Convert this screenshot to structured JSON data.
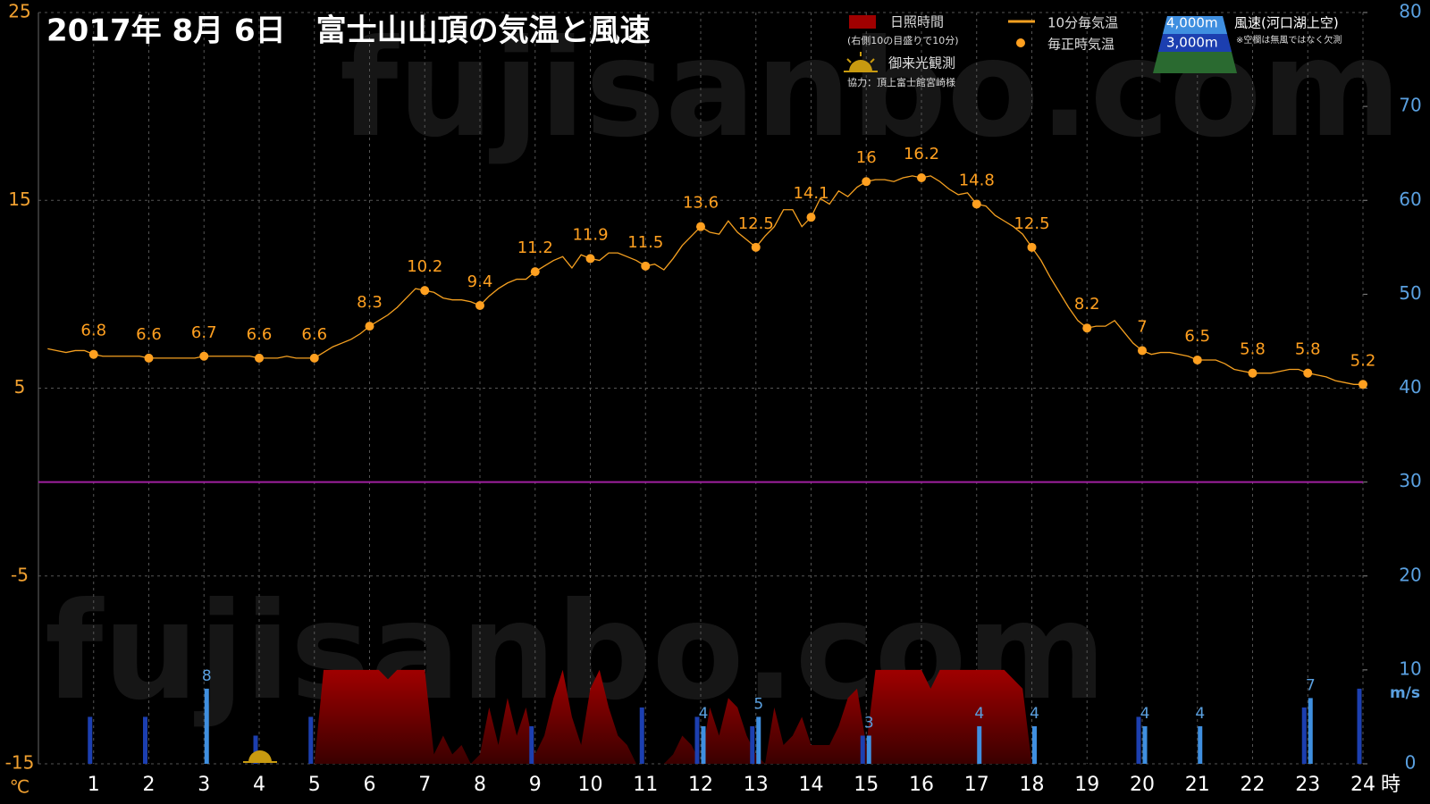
{
  "chart_data": {
    "type": "weather",
    "title": "2017年 8月 6日　富士山山頂の気温と風速",
    "watermark": "fujisanbo.com",
    "y_unit": "℃",
    "y2_unit": "m/s",
    "x_unit": "時",
    "xlim": [
      0,
      1440
    ],
    "xticks": [
      {
        "value": 60,
        "label": "1"
      },
      {
        "value": 120,
        "label": "2"
      },
      {
        "value": 180,
        "label": "3"
      },
      {
        "value": 240,
        "label": "4"
      },
      {
        "value": 300,
        "label": "5"
      },
      {
        "value": 360,
        "label": "6"
      },
      {
        "value": 420,
        "label": "7"
      },
      {
        "value": 480,
        "label": "8"
      },
      {
        "value": 540,
        "label": "9"
      },
      {
        "value": 600,
        "label": "10"
      },
      {
        "value": 660,
        "label": "11"
      },
      {
        "value": 720,
        "label": "12"
      },
      {
        "value": 780,
        "label": "13"
      },
      {
        "value": 840,
        "label": "14"
      },
      {
        "value": 900,
        "label": "15"
      },
      {
        "value": 960,
        "label": "16"
      },
      {
        "value": 1020,
        "label": "17"
      },
      {
        "value": 1080,
        "label": "18"
      },
      {
        "value": 1140,
        "label": "19"
      },
      {
        "value": 1200,
        "label": "20"
      },
      {
        "value": 1260,
        "label": "21"
      },
      {
        "value": 1320,
        "label": "22"
      },
      {
        "value": 1380,
        "label": "23"
      },
      {
        "value": 1440,
        "label": "24"
      }
    ],
    "ylim": [
      -15,
      25
    ],
    "yticks": [
      -15,
      -5,
      5,
      15,
      25
    ],
    "y2lim": [
      0,
      80
    ],
    "y2ticks": [
      0,
      10,
      20,
      30,
      40,
      50,
      60,
      70,
      80
    ],
    "grid": true,
    "reference_line": {
      "value": 0,
      "color": "#a020a0"
    },
    "x": [
      10,
      20,
      30,
      40,
      50,
      60,
      70,
      80,
      90,
      100,
      110,
      120,
      130,
      140,
      150,
      160,
      170,
      180,
      190,
      200,
      210,
      220,
      230,
      240,
      250,
      260,
      270,
      280,
      290,
      300,
      310,
      320,
      330,
      340,
      350,
      360,
      370,
      380,
      390,
      400,
      410,
      420,
      430,
      440,
      450,
      460,
      470,
      480,
      490,
      500,
      510,
      520,
      530,
      540,
      550,
      560,
      570,
      580,
      590,
      600,
      610,
      620,
      630,
      640,
      650,
      660,
      670,
      680,
      690,
      700,
      710,
      720,
      730,
      740,
      750,
      760,
      770,
      780,
      790,
      800,
      810,
      820,
      830,
      840,
      850,
      860,
      870,
      880,
      890,
      900,
      910,
      920,
      930,
      940,
      950,
      960,
      970,
      980,
      990,
      1000,
      1010,
      1020,
      1030,
      1040,
      1050,
      1060,
      1070,
      1080,
      1090,
      1100,
      1110,
      1120,
      1130,
      1140,
      1150,
      1160,
      1170,
      1180,
      1190,
      1200,
      1210,
      1220,
      1230,
      1240,
      1250,
      1260,
      1270,
      1280,
      1290,
      1300,
      1310,
      1320,
      1330,
      1340,
      1350,
      1360,
      1370,
      1380,
      1390,
      1400,
      1410,
      1420,
      1430,
      1440
    ],
    "hour_x": [
      60,
      120,
      180,
      240,
      300,
      360,
      420,
      480,
      540,
      600,
      660,
      720,
      780,
      840,
      900,
      960,
      1020,
      1080,
      1140,
      1200,
      1260,
      1320,
      1380,
      1440
    ],
    "sunshine": {
      "name": "日照時間",
      "note": "(右側10の目盛りで10分)",
      "color": "#a00000",
      "axis": "y2",
      "values": [
        0,
        0,
        0,
        0,
        0,
        0,
        0,
        0,
        0,
        0,
        0,
        0,
        0,
        0,
        0,
        0,
        0,
        0,
        0,
        0,
        0,
        0,
        0,
        0,
        0,
        0,
        0,
        0,
        0,
        0,
        10,
        10,
        10,
        10,
        10,
        10,
        10,
        9,
        10,
        10,
        10,
        10,
        1,
        3,
        1,
        2,
        0,
        1,
        6,
        2,
        7,
        3,
        6,
        1,
        3,
        7,
        10,
        5,
        2,
        8,
        10,
        6,
        3,
        2,
        0,
        0,
        0,
        0,
        1,
        3,
        2,
        0,
        6,
        3,
        7,
        6,
        3,
        1,
        0,
        6,
        2,
        3,
        5,
        2,
        2,
        2,
        4,
        7,
        8,
        2,
        10,
        10,
        10,
        10,
        10,
        10,
        8,
        10,
        10,
        10,
        10,
        10,
        10,
        10,
        10,
        9,
        8,
        0,
        0,
        0,
        0,
        0,
        0,
        0,
        0,
        0,
        0,
        0,
        0,
        0,
        0,
        0,
        0,
        0,
        0,
        0,
        0,
        0,
        0,
        0,
        0,
        0,
        0,
        0,
        0,
        0,
        0,
        0,
        0,
        0,
        0,
        0,
        0,
        0
      ]
    },
    "temp_10min": {
      "name": "10分毎気温",
      "color": "#f5a020",
      "values": [
        7.1,
        7.0,
        6.9,
        7.0,
        7.0,
        6.8,
        6.7,
        6.7,
        6.7,
        6.7,
        6.7,
        6.6,
        6.6,
        6.6,
        6.6,
        6.6,
        6.6,
        6.7,
        6.7,
        6.7,
        6.7,
        6.7,
        6.7,
        6.6,
        6.6,
        6.6,
        6.7,
        6.6,
        6.6,
        6.6,
        6.9,
        7.2,
        7.4,
        7.6,
        7.9,
        8.3,
        8.6,
        8.9,
        9.3,
        9.8,
        10.3,
        10.2,
        10.1,
        9.8,
        9.7,
        9.7,
        9.6,
        9.4,
        9.9,
        10.3,
        10.6,
        10.8,
        10.8,
        11.2,
        11.5,
        11.8,
        12.0,
        11.4,
        12.1,
        11.9,
        11.8,
        12.2,
        12.2,
        12.0,
        11.8,
        11.5,
        11.6,
        11.3,
        11.9,
        12.6,
        13.1,
        13.6,
        13.3,
        13.2,
        13.9,
        13.3,
        12.9,
        12.5,
        13.1,
        13.6,
        14.5,
        14.5,
        13.6,
        14.1,
        15.1,
        14.8,
        15.5,
        15.2,
        15.7,
        16.0,
        16.1,
        16.1,
        16.0,
        16.2,
        16.3,
        16.2,
        16.3,
        16.0,
        15.6,
        15.3,
        15.4,
        14.8,
        14.7,
        14.2,
        13.9,
        13.6,
        13.2,
        12.5,
        11.8,
        10.9,
        10.1,
        9.3,
        8.6,
        8.2,
        8.3,
        8.3,
        8.6,
        8.0,
        7.4,
        7.0,
        6.8,
        6.9,
        6.9,
        6.8,
        6.7,
        6.5,
        6.5,
        6.5,
        6.3,
        6.0,
        5.9,
        5.8,
        5.8,
        5.8,
        5.9,
        6.0,
        6.0,
        5.8,
        5.7,
        5.6,
        5.4,
        5.3,
        5.2,
        5.2
      ]
    },
    "temp_hourly": {
      "name": "毎正時気温",
      "color": "#ffa020",
      "values": [
        6.8,
        6.6,
        6.7,
        6.6,
        6.6,
        8.3,
        10.2,
        9.4,
        11.2,
        11.9,
        11.5,
        13.6,
        12.5,
        14.1,
        16,
        16.2,
        14.8,
        12.5,
        8.2,
        7,
        6.5,
        5.8,
        5.8,
        5.2
      ]
    },
    "wind_title": "風速(河口湖上空)",
    "wind_note": "※空欄は無風ではなく欠測",
    "wind": [
      {
        "name": "4,000m",
        "color": "#3f8fe0",
        "axis": "y2",
        "labels": true,
        "values": [
          null,
          null,
          8,
          null,
          null,
          null,
          null,
          null,
          null,
          null,
          null,
          4,
          5,
          null,
          3,
          null,
          4,
          4,
          null,
          4,
          4,
          null,
          7,
          null
        ]
      },
      {
        "name": "3,000m",
        "color": "#1c3fb0",
        "axis": "y2",
        "labels": false,
        "values": [
          5,
          5,
          null,
          3,
          5,
          null,
          null,
          null,
          4,
          null,
          6,
          5,
          4,
          null,
          3,
          null,
          null,
          null,
          null,
          5,
          null,
          null,
          6,
          8
        ]
      }
    ],
    "sunrise_label": "御来光観測",
    "credit": "協力：頂上富士館宮崎様"
  }
}
